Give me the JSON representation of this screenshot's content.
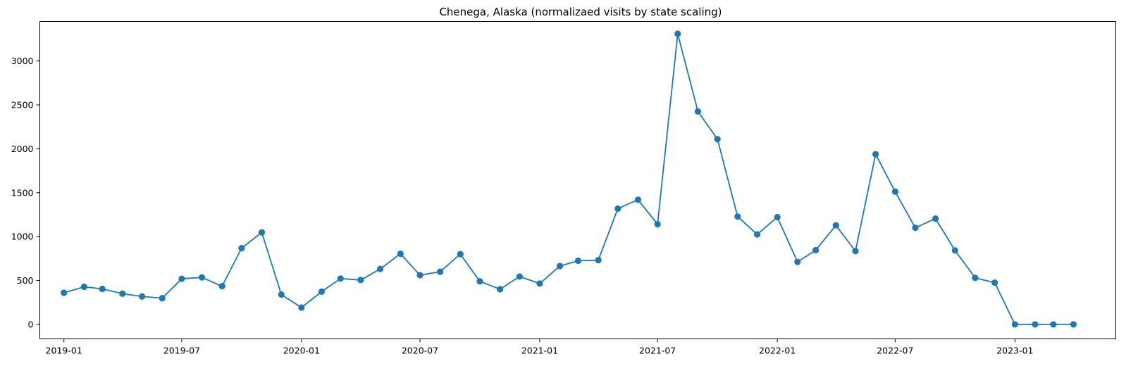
{
  "chart_data": {
    "type": "line",
    "title": "Chenega, Alaska (normalizaed visits by state scaling)",
    "xlabel": "",
    "ylabel": "",
    "x_range": [
      "2018-11-25",
      "2023-06-05"
    ],
    "ylim": [
      -165,
      3450
    ],
    "grid": false,
    "legend": "none",
    "x_ticks": [
      {
        "date": "2019-01-01",
        "label": "2019-01"
      },
      {
        "date": "2019-07-01",
        "label": "2019-07"
      },
      {
        "date": "2020-01-01",
        "label": "2020-01"
      },
      {
        "date": "2020-07-01",
        "label": "2020-07"
      },
      {
        "date": "2021-01-01",
        "label": "2021-01"
      },
      {
        "date": "2021-07-01",
        "label": "2021-07"
      },
      {
        "date": "2022-01-01",
        "label": "2022-01"
      },
      {
        "date": "2022-07-01",
        "label": "2022-07"
      },
      {
        "date": "2023-01-01",
        "label": "2023-01"
      }
    ],
    "y_ticks": [
      0,
      500,
      1000,
      1500,
      2000,
      2500,
      3000
    ],
    "series": [
      {
        "color": "#1f77b4",
        "marker": "circle",
        "x": [
          "2019-01-01",
          "2019-02-01",
          "2019-03-01",
          "2019-04-01",
          "2019-05-01",
          "2019-06-01",
          "2019-07-01",
          "2019-08-01",
          "2019-09-01",
          "2019-10-01",
          "2019-11-01",
          "2019-12-01",
          "2020-01-01",
          "2020-02-01",
          "2020-03-01",
          "2020-04-01",
          "2020-05-01",
          "2020-06-01",
          "2020-07-01",
          "2020-08-01",
          "2020-09-01",
          "2020-10-01",
          "2020-11-01",
          "2020-12-01",
          "2021-01-01",
          "2021-02-01",
          "2021-03-01",
          "2021-04-01",
          "2021-05-01",
          "2021-06-01",
          "2021-07-01",
          "2021-08-01",
          "2021-09-01",
          "2021-10-01",
          "2021-11-01",
          "2021-12-01",
          "2022-01-01",
          "2022-02-01",
          "2022-03-01",
          "2022-04-01",
          "2022-05-01",
          "2022-06-01",
          "2022-07-01",
          "2022-08-01",
          "2022-09-01",
          "2022-10-01",
          "2022-11-01",
          "2022-12-01",
          "2023-01-01",
          "2023-02-01",
          "2023-03-01",
          "2023-04-01"
        ],
        "values": [
          360,
          428,
          404,
          350,
          318,
          298,
          520,
          535,
          435,
          868,
          1048,
          340,
          192,
          373,
          522,
          505,
          632,
          805,
          560,
          600,
          800,
          490,
          400,
          545,
          465,
          665,
          725,
          732,
          1318,
          1420,
          1142,
          3310,
          2425,
          2110,
          1228,
          1025,
          1222,
          712,
          845,
          1128,
          835,
          1938,
          1512,
          1100,
          1205,
          842,
          530,
          475,
          0,
          0,
          0,
          0
        ]
      }
    ]
  }
}
